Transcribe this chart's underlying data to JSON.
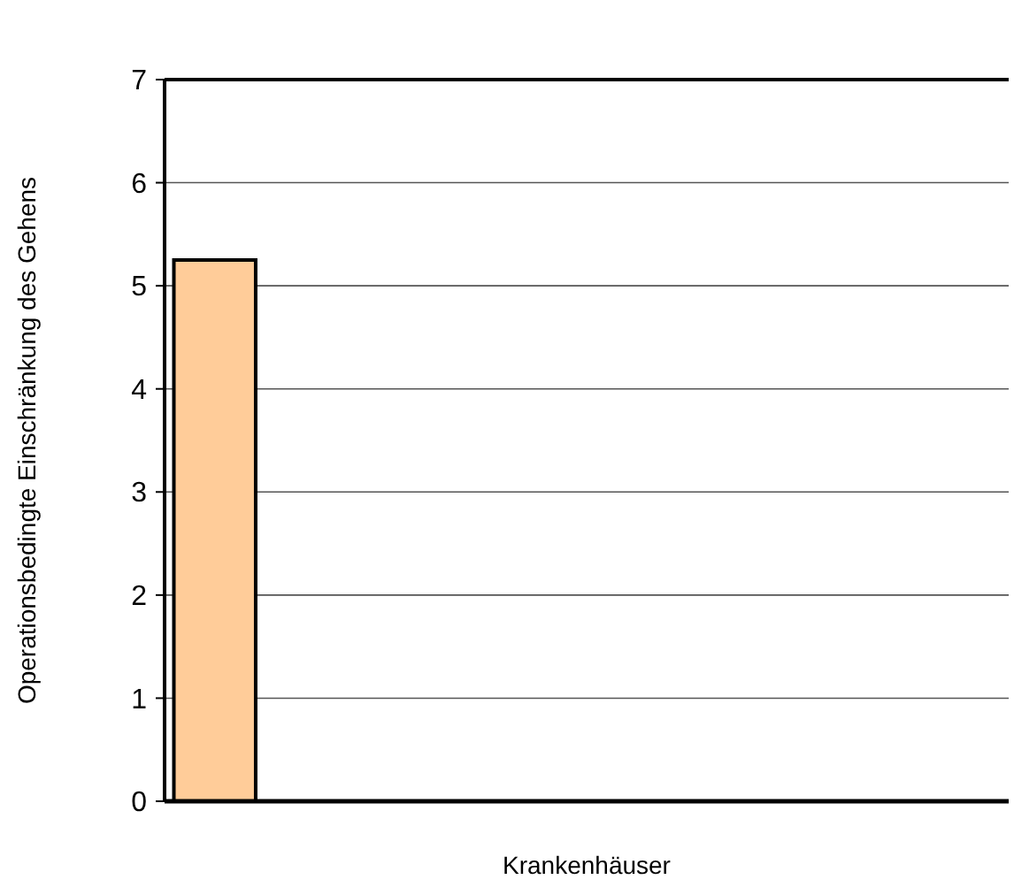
{
  "chart_data": {
    "type": "bar",
    "xlabel": "Krankenhäuser",
    "ylabel": "Operationsbedingte Einschränkung des Gehens",
    "categories": [
      null,
      null,
      null,
      null,
      null,
      null,
      null,
      null,
      null
    ],
    "values": [
      5.25,
      null,
      null,
      null,
      null,
      null,
      null,
      null,
      null
    ],
    "color": "#ffcc99",
    "ylim": [
      0,
      7
    ],
    "yticks": [
      0,
      1,
      2,
      3,
      4,
      5,
      6,
      7
    ],
    "grid": "y"
  }
}
